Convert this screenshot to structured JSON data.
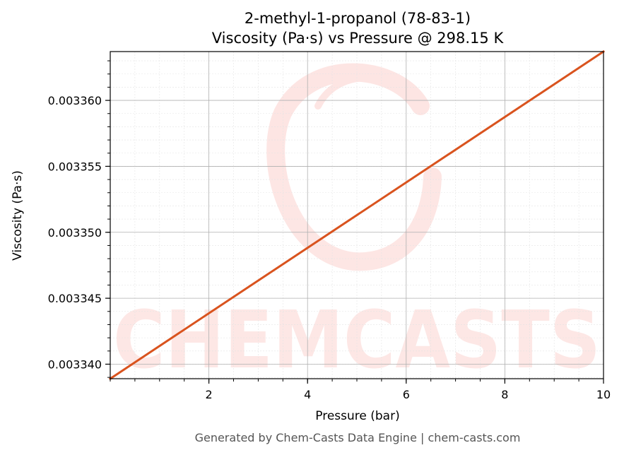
{
  "chart_data": {
    "type": "line",
    "title": "2-methyl-1-propanol (78-83-1)",
    "subtitle": "Viscosity (Pa·s) vs Pressure @ 298.15 K",
    "xlabel": "Pressure (bar)",
    "ylabel": "Viscosity (Pa·s)",
    "xlim": [
      0.0,
      10.0
    ],
    "ylim": [
      0.0033389,
      0.0033637
    ],
    "x_ticks": [
      2,
      4,
      6,
      8,
      10
    ],
    "x_tick_labels": [
      "2",
      "4",
      "6",
      "8",
      "10"
    ],
    "y_ticks": [
      0.00334,
      0.003345,
      0.00335,
      0.003355,
      0.00336
    ],
    "y_tick_labels": [
      "0.003340",
      "0.003345",
      "0.003350",
      "0.003355",
      "0.003360"
    ],
    "grid": true,
    "series": [
      {
        "x": [
          0,
          10
        ],
        "values": [
          0.0033389,
          0.0033637
        ],
        "color": "#d9531e"
      }
    ]
  },
  "watermark": {
    "text": "CHEMCASTS",
    "color": "#fde3e1"
  },
  "footer": "Generated by Chem-Casts Data Engine | chem-casts.com"
}
